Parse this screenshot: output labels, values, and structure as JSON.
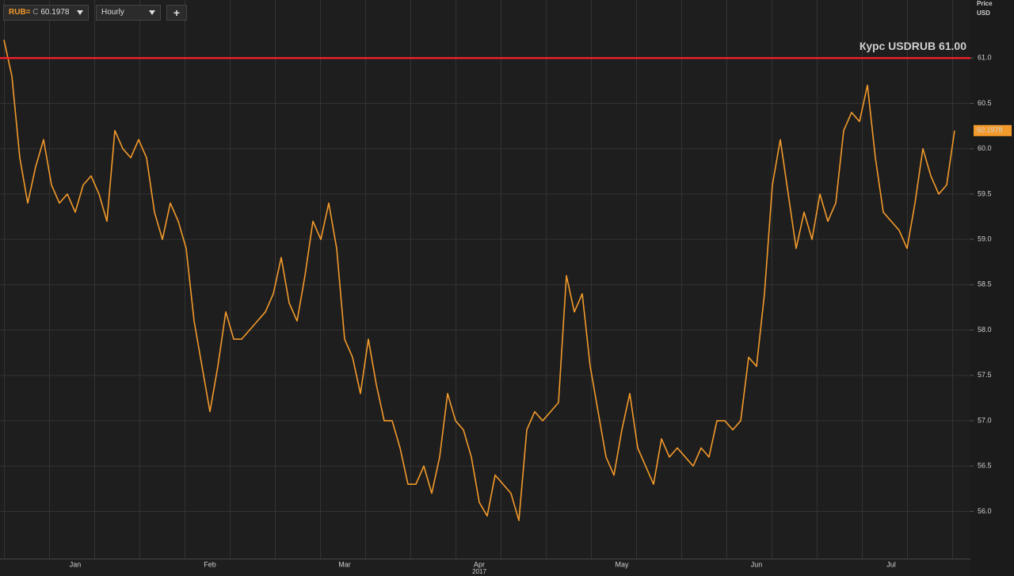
{
  "toolbar": {
    "ric": "RUB=",
    "close_prefix": "C",
    "close": "60.1978",
    "interval": "Hourly",
    "add": "+"
  },
  "chart_data": {
    "type": "line",
    "y_title": "Price",
    "y_unit": "USD",
    "year_label": "2017",
    "color": "#f39a2b",
    "categories": [
      null,
      null,
      null,
      null,
      null,
      null,
      null,
      null,
      null,
      "Jan",
      null,
      null,
      null,
      null,
      null,
      null,
      null,
      null,
      null,
      null,
      null,
      null,
      null,
      null,
      null,
      null,
      "Feb",
      null,
      null,
      null,
      null,
      null,
      null,
      null,
      null,
      null,
      null,
      null,
      null,
      null,
      null,
      null,
      null,
      "Mar",
      null,
      null,
      null,
      null,
      null,
      null,
      null,
      null,
      null,
      null,
      null,
      null,
      null,
      null,
      null,
      null,
      "Apr",
      null,
      null,
      null,
      null,
      null,
      null,
      null,
      null,
      null,
      null,
      null,
      null,
      null,
      null,
      null,
      null,
      null,
      "May",
      null,
      null,
      null,
      null,
      null,
      null,
      null,
      null,
      null,
      null,
      null,
      null,
      null,
      null,
      null,
      null,
      "Jun",
      null,
      null,
      null,
      null,
      null,
      null,
      null,
      null,
      null,
      null,
      null,
      null,
      null,
      null,
      null,
      null,
      "Jul",
      null,
      null,
      null,
      null,
      null,
      null,
      null,
      null
    ],
    "values": [
      61.2,
      60.8,
      59.9,
      59.4,
      59.8,
      60.1,
      59.6,
      59.4,
      59.5,
      59.3,
      59.6,
      59.7,
      59.5,
      59.2,
      60.2,
      60.0,
      59.9,
      60.1,
      59.9,
      59.3,
      59.0,
      59.4,
      59.2,
      58.9,
      58.1,
      57.6,
      57.1,
      57.6,
      58.2,
      57.9,
      57.9,
      58.0,
      58.1,
      58.2,
      58.4,
      58.8,
      58.3,
      58.1,
      58.6,
      59.2,
      59.0,
      59.4,
      58.9,
      57.9,
      57.7,
      57.3,
      57.9,
      57.4,
      57.0,
      57.0,
      56.7,
      56.3,
      56.3,
      56.5,
      56.2,
      56.6,
      57.3,
      57.0,
      56.9,
      56.6,
      56.1,
      55.95,
      56.4,
      56.3,
      56.2,
      55.9,
      56.9,
      57.1,
      57.0,
      57.1,
      57.2,
      58.6,
      58.2,
      58.4,
      57.6,
      57.1,
      56.6,
      56.4,
      56.9,
      57.3,
      56.7,
      56.5,
      56.3,
      56.8,
      56.6,
      56.7,
      56.6,
      56.5,
      56.7,
      56.6,
      57.0,
      57.0,
      56.9,
      57.0,
      57.7,
      57.6,
      58.4,
      59.6,
      60.1,
      59.5,
      58.9,
      59.3,
      59.0,
      59.5,
      59.2,
      59.4,
      60.2,
      60.4,
      60.3,
      60.7,
      59.9,
      59.3,
      59.2,
      59.1,
      58.9,
      59.4,
      60.0,
      59.7,
      59.5,
      59.6,
      60.2
    ],
    "ylim": [
      55.48,
      61.64
    ],
    "yticks": [
      {
        "value": 56.0,
        "label": "56.0"
      },
      {
        "value": 56.5,
        "label": "56.5"
      },
      {
        "value": 57.0,
        "label": "57.0"
      },
      {
        "value": 57.5,
        "label": "57.5"
      },
      {
        "value": 58.0,
        "label": "58.0"
      },
      {
        "value": 58.5,
        "label": "58.5"
      },
      {
        "value": 59.0,
        "label": "59.0"
      },
      {
        "value": 59.5,
        "label": "59.5"
      },
      {
        "value": 60.0,
        "label": "60.0"
      },
      {
        "value": 60.5,
        "label": "60.5"
      },
      {
        "value": 61.0,
        "label": "61.0"
      }
    ],
    "grid": true,
    "annotation": {
      "text": "Курс USDRUB 61.00",
      "value": 61.0,
      "color": "#e8202a"
    },
    "last_label": "60.1978"
  }
}
